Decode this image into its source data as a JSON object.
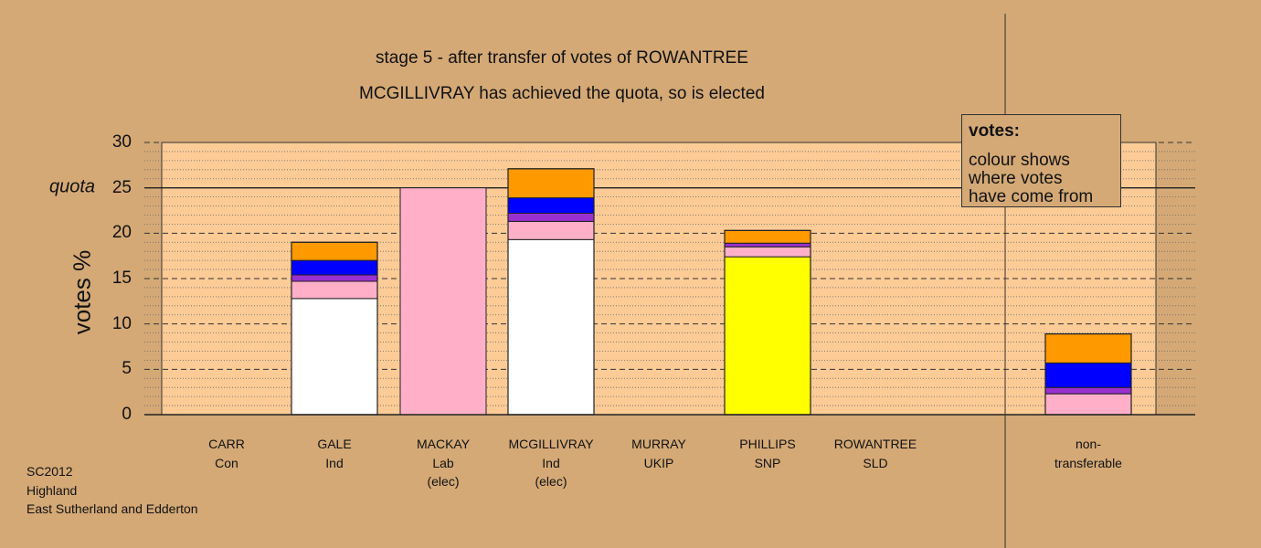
{
  "chart_data": {
    "type": "bar",
    "stacked": true,
    "title": "stage 5 - after transfer of votes of ROWANTREE",
    "subtitle": "MCGILLIVRAY has achieved the quota, so is elected",
    "ylabel": "votes %",
    "ylim": [
      0,
      30
    ],
    "yticks": [
      "0",
      "5",
      "10",
      "15",
      "20",
      "25",
      "30"
    ],
    "quota": 25,
    "quota_label": "quota",
    "categories": [
      {
        "name": "CARR",
        "party": "Con",
        "note": ""
      },
      {
        "name": "GALE",
        "party": "Ind",
        "note": ""
      },
      {
        "name": "MACKAY",
        "party": "Lab",
        "note": "(elec)"
      },
      {
        "name": "MCGILLIVRAY",
        "party": "Ind",
        "note": "(elec)"
      },
      {
        "name": "MURRAY",
        "party": "UKIP",
        "note": ""
      },
      {
        "name": "PHILLIPS",
        "party": "SNP",
        "note": ""
      },
      {
        "name": "ROWANTREE",
        "party": "SLD",
        "note": ""
      },
      {
        "name": "non-",
        "party": "transferable",
        "note": ""
      }
    ],
    "segment_colors": {
      "first": "#FFFFFF",
      "lab": "#FFB0C8",
      "ukip": "#9B30D0",
      "con": "#0000FF",
      "sld": "#FF9900",
      "snp": "#FFFF00"
    },
    "stacks": [
      [],
      [
        {
          "color": "first",
          "value": 12.8
        },
        {
          "color": "lab",
          "value": 1.9
        },
        {
          "color": "ukip",
          "value": 0.7
        },
        {
          "color": "con",
          "value": 1.6
        },
        {
          "color": "sld",
          "value": 2.0
        }
      ],
      [
        {
          "color": "lab",
          "value": 25.0
        }
      ],
      [
        {
          "color": "first",
          "value": 19.3
        },
        {
          "color": "lab",
          "value": 2.0
        },
        {
          "color": "ukip",
          "value": 0.9
        },
        {
          "color": "con",
          "value": 1.7
        },
        {
          "color": "sld",
          "value": 3.2
        }
      ],
      [],
      [
        {
          "color": "snp",
          "value": 17.4
        },
        {
          "color": "lab",
          "value": 1.1
        },
        {
          "color": "ukip",
          "value": 0.4
        },
        {
          "color": "sld",
          "value": 1.4
        }
      ],
      [],
      [
        {
          "color": "lab",
          "value": 2.3
        },
        {
          "color": "ukip",
          "value": 0.7
        },
        {
          "color": "con",
          "value": 2.7
        },
        {
          "color": "sld",
          "value": 3.2
        }
      ]
    ],
    "legend": {
      "title": "votes:",
      "lines": [
        "colour shows",
        "where votes",
        "have come from"
      ],
      "placement": "top-right"
    },
    "grid": true
  },
  "footer": {
    "line1": "SC2012",
    "line2": "Highland",
    "line3": "East Sutherland and Edderton"
  },
  "colors": {
    "background": "#D4A976",
    "plot_background": "#FCCB96"
  }
}
